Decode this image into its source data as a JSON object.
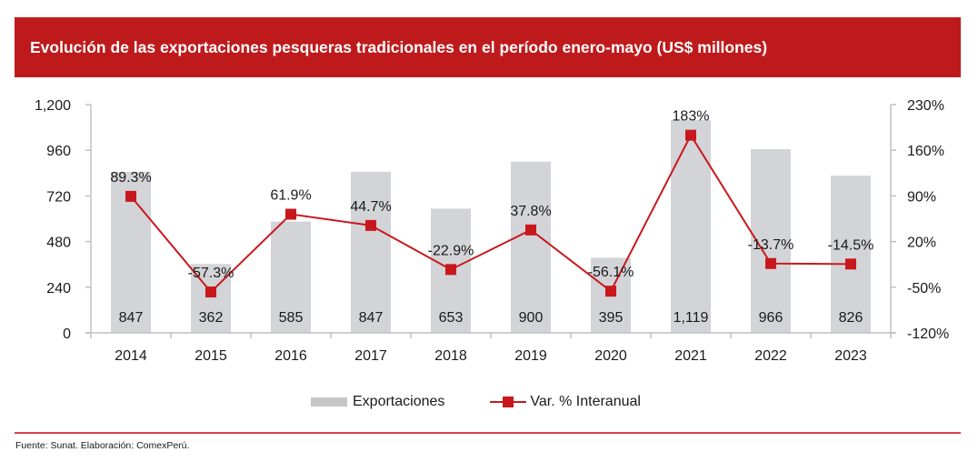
{
  "header": {
    "title": "Evolución de las exportaciones pesqueras tradicionales en el período enero-mayo (US$ millones)"
  },
  "footer": {
    "source": "Fuente: Sunat. Elaboración: ComexPerú."
  },
  "colors": {
    "banner": "#be1a1c",
    "bars": "#d3d4d7",
    "line": "#c8181e",
    "axis": "#c0c0c0",
    "footer_rule": "#d9434a"
  },
  "chart_data": {
    "type": "bar",
    "title": "Evolución de las exportaciones pesqueras tradicionales en el período enero-mayo (US$ millones)",
    "xlabel": "",
    "ylabel": "",
    "categories": [
      "2014",
      "2015",
      "2016",
      "2017",
      "2018",
      "2019",
      "2020",
      "2021",
      "2022",
      "2023"
    ],
    "series": [
      {
        "name": "Exportaciones",
        "type": "bar",
        "axis": "left",
        "values": [
          847,
          362,
          585,
          847,
          653,
          900,
          395,
          1119,
          966,
          826
        ],
        "labels": [
          "847",
          "362",
          "585",
          "847",
          "653",
          "900",
          "395",
          "1,119",
          "966",
          "826"
        ]
      },
      {
        "name": "Var. % Interanual",
        "type": "line",
        "axis": "right",
        "values": [
          89.3,
          -57.3,
          61.9,
          44.7,
          -22.9,
          37.8,
          -56.1,
          183,
          -13.7,
          -14.5
        ],
        "labels": [
          "89.3%",
          "-57.3%",
          "61.9%",
          "44.7%",
          "-22.9%",
          "37.8%",
          "-56.1%",
          "183%",
          "-13.7%",
          "-14.5%"
        ]
      }
    ],
    "y_left": {
      "ylim": [
        0,
        1200
      ],
      "ticks": [
        0,
        240,
        480,
        720,
        960,
        1200
      ],
      "tick_labels": [
        "0",
        "240",
        "480",
        "720",
        "960",
        "1,200"
      ]
    },
    "y_right": {
      "ylim": [
        -120,
        230
      ],
      "ticks": [
        -120,
        -50,
        20,
        90,
        160,
        230
      ],
      "tick_labels": [
        "-120%",
        "-50%",
        "20%",
        "90%",
        "160%",
        "230%"
      ]
    },
    "grid": false,
    "legend": {
      "position": "bottom-center",
      "entries": [
        "Exportaciones",
        "Var. % Interanual"
      ]
    }
  }
}
